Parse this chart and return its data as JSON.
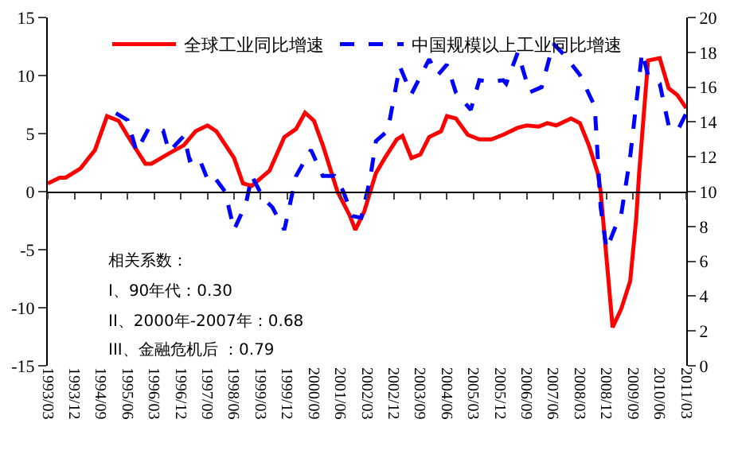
{
  "chart_data": {
    "type": "line",
    "legend": "top",
    "marker": "none",
    "xlim": [
      "1993-03",
      "2011-03"
    ],
    "xticks": [
      {
        "value": "1993-03",
        "label": "1993/03"
      },
      {
        "value": "1993-12",
        "label": "1993/12"
      },
      {
        "value": "1994-09",
        "label": "1994/09"
      },
      {
        "value": "1995-06",
        "label": "1995/06"
      },
      {
        "value": "1996-03",
        "label": "1996/03"
      },
      {
        "value": "1996-12",
        "label": "1996/12"
      },
      {
        "value": "1997-09",
        "label": "1997/09"
      },
      {
        "value": "1998-06",
        "label": "1998/06"
      },
      {
        "value": "1999-03",
        "label": "1999/03"
      },
      {
        "value": "1999-12",
        "label": "1999/12"
      },
      {
        "value": "2000-09",
        "label": "2000/09"
      },
      {
        "value": "2001-06",
        "label": "2001/06"
      },
      {
        "value": "2002-03",
        "label": "2002/03"
      },
      {
        "value": "2002-12",
        "label": "2002/12"
      },
      {
        "value": "2003-09",
        "label": "2003/09"
      },
      {
        "value": "2004-06",
        "label": "2004/06"
      },
      {
        "value": "2005-03",
        "label": "2005/03"
      },
      {
        "value": "2005-12",
        "label": "2005/12"
      },
      {
        "value": "2006-09",
        "label": "2006/09"
      },
      {
        "value": "2007-06",
        "label": "2007/06"
      },
      {
        "value": "2008-03",
        "label": "2008/03"
      },
      {
        "value": "2008-12",
        "label": "2008/12"
      },
      {
        "value": "2009-09",
        "label": "2009/09"
      },
      {
        "value": "2010-06",
        "label": "2010/06"
      },
      {
        "value": "2011-03",
        "label": "2011/03"
      }
    ],
    "ylim": [
      -15,
      15
    ],
    "yticks": [
      -15,
      -10,
      -5,
      0,
      5,
      10,
      15
    ],
    "y2lim": [
      0,
      20
    ],
    "y2ticks": [
      0,
      2,
      4,
      6,
      8,
      10,
      12,
      14,
      16,
      18,
      20
    ],
    "series": [
      {
        "name": "全球工业同比增速",
        "color": "#ff0000",
        "line_style": "solid",
        "x": [
          "1993-03",
          "1993-07",
          "1993-09",
          "1994-02",
          "1994-07",
          "1994-11",
          "1995-03",
          "1995-07",
          "1995-12",
          "1996-02",
          "1996-08",
          "1997-01",
          "1997-05",
          "1997-09",
          "1997-12",
          "1998-06",
          "1998-09",
          "1998-12",
          "1999-06",
          "1999-11",
          "2000-03",
          "2000-06",
          "2000-09",
          "2000-12",
          "2001-05",
          "2001-09",
          "2001-11",
          "2002-02",
          "2002-06",
          "2002-09",
          "2003-01",
          "2003-03",
          "2003-06",
          "2003-09",
          "2003-12",
          "2004-04",
          "2004-06",
          "2004-09",
          "2005-01",
          "2005-05",
          "2005-09",
          "2006-01",
          "2006-06",
          "2006-09",
          "2007-01",
          "2007-04",
          "2007-07",
          "2007-12",
          "2008-03",
          "2008-06",
          "2008-09",
          "2008-10",
          "2009-02",
          "2009-05",
          "2009-08",
          "2009-10",
          "2009-11",
          "2010-02",
          "2010-06",
          "2010-09",
          "2010-12",
          "2011-03"
        ],
        "values": [
          0.7,
          1.2,
          1.2,
          2,
          3.6,
          6.5,
          6.1,
          4.4,
          2.4,
          2.4,
          3.3,
          4,
          5.2,
          5.7,
          5.2,
          2.9,
          0.7,
          0.5,
          1.8,
          4.7,
          5.4,
          6.8,
          6.1,
          4,
          0,
          -2,
          -3.3,
          -1.7,
          1.6,
          2.9,
          4.5,
          4.8,
          2.9,
          3.2,
          4.7,
          5.2,
          6.5,
          6.3,
          4.9,
          4.5,
          4.5,
          4.9,
          5.5,
          5.7,
          5.6,
          5.9,
          5.7,
          6.3,
          5.9,
          4,
          1.6,
          0,
          -11.7,
          -10.1,
          -7.7,
          -2.4,
          1.6,
          11.3,
          11.5,
          8.9,
          8.3,
          7.2
        ]
      },
      {
        "name": "中国规模以上工业同比增速",
        "color": "#0000ff",
        "line_style": "dashed",
        "axis": "y2",
        "x": [
          "1995-02",
          "1995-06",
          "1995-09",
          "1996-01",
          "1996-06",
          "1996-08",
          "1997-01",
          "1997-03",
          "1997-06",
          "1997-09",
          "1997-11",
          "1998-03",
          "1998-06",
          "1998-10",
          "1998-12",
          "1999-04",
          "1999-07",
          "1999-11",
          "2000-03",
          "2000-08",
          "2000-12",
          "2001-04",
          "2001-07",
          "2001-10",
          "2002-01",
          "2002-04",
          "2002-06",
          "2002-10",
          "2003-02",
          "2003-06",
          "2003-12",
          "2004-03",
          "2004-06",
          "2004-09",
          "2005-02",
          "2005-05",
          "2005-09",
          "2006-01",
          "2006-02",
          "2006-06",
          "2006-10",
          "2007-02",
          "2007-06",
          "2007-10",
          "2008-03",
          "2008-08",
          "2008-10",
          "2008-12",
          "2009-04",
          "2009-05",
          "2009-08",
          "2009-12",
          "2010-02",
          "2010-06",
          "2010-09",
          "2010-12",
          "2011-03"
        ],
        "values": [
          14.5,
          14.1,
          12.3,
          13.6,
          13.5,
          12.3,
          13.2,
          11.8,
          12,
          10.7,
          10.9,
          10,
          7.8,
          9.3,
          10.9,
          9.6,
          9.1,
          7.8,
          10.9,
          12.4,
          10.9,
          10.9,
          10,
          8.6,
          8.5,
          10.7,
          12.9,
          13.5,
          17.2,
          15.6,
          17.6,
          16.7,
          17.3,
          15.7,
          14.7,
          16.4,
          16.3,
          16.4,
          16.2,
          18,
          15.7,
          16,
          18.5,
          17.8,
          16.7,
          14.9,
          9.1,
          6.7,
          8.4,
          8.7,
          12,
          18,
          16.7,
          16.2,
          13.8,
          13.5,
          14.5
        ]
      }
    ],
    "annotations": [
      "相关系数：",
      "I、90年代：0.30",
      "II、2000年-2007年：0.68",
      "III、金融危机后 ：0.79"
    ]
  }
}
